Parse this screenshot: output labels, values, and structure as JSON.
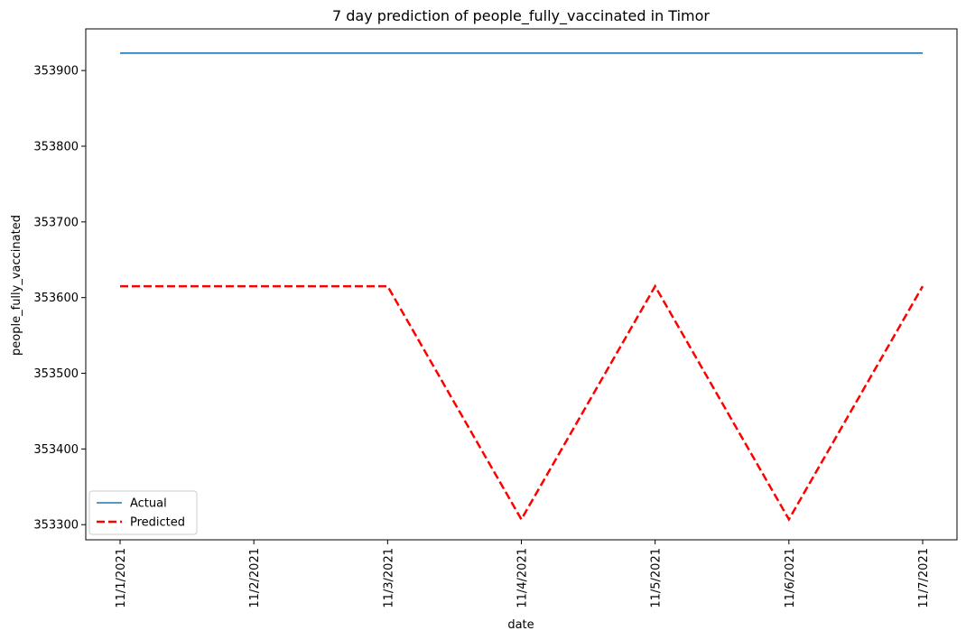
{
  "chart_data": {
    "type": "line",
    "title": "7 day prediction of people_fully_vaccinated in Timor",
    "xlabel": "date",
    "ylabel": "people_fully_vaccinated",
    "categories": [
      "11/1/2021",
      "11/2/2021",
      "11/3/2021",
      "11/4/2021",
      "11/5/2021",
      "11/6/2021",
      "11/7/2021"
    ],
    "ylim": [
      353280,
      353955
    ],
    "yticks": [
      353300,
      353400,
      353500,
      353600,
      353700,
      353800,
      353900
    ],
    "ytick_labels": [
      "353300",
      "353400",
      "353500",
      "353600",
      "353700",
      "353800",
      "353900"
    ],
    "grid": false,
    "legend_position": "bottom-left",
    "series": [
      {
        "name": "Actual",
        "values": [
          353923,
          353923,
          353923,
          353923,
          353923,
          353923,
          353923
        ],
        "color": "#1f77b4",
        "style": "solid"
      },
      {
        "name": "Predicted",
        "values": [
          353615,
          353615,
          353615,
          353307,
          353615,
          353307,
          353615
        ],
        "color": "#ff0000",
        "style": "dashed"
      }
    ]
  }
}
